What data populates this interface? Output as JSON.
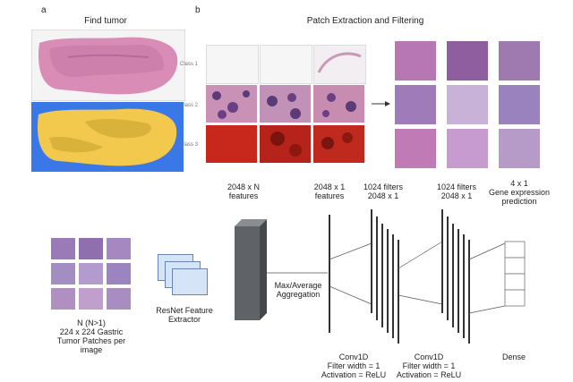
{
  "panel_a": {
    "letter": "a",
    "title": "Find tumor"
  },
  "panel_b": {
    "letter": "b",
    "title": "Patch Extraction and Filtering",
    "classes": [
      "Class 1",
      "Class 2",
      "Class 3"
    ]
  },
  "pipeline": {
    "input_label": [
      "N (N>1)",
      "224 x 224 Gastric",
      "Tumor Patches per",
      "image"
    ],
    "extractor_label": [
      "ResNet Feature",
      "Extractor"
    ],
    "features_n": [
      "2048 x N",
      "features"
    ],
    "aggregation": [
      "Max/Average",
      "Aggregation"
    ],
    "features_1": [
      "2048 x 1",
      "features"
    ],
    "conv1_filters": [
      "1024 filters",
      "2048 x 1"
    ],
    "conv2_filters": [
      "1024 filters",
      "2048 x 1"
    ],
    "output_label": [
      "4 x 1",
      "Gene expression",
      "prediction"
    ],
    "conv1_label": [
      "Conv1D",
      "Filter width = 1",
      "Activation = ReLU"
    ],
    "conv2_label": [
      "Conv1D",
      "Filter width = 1",
      "Activation = ReLU"
    ],
    "dense_label": "Dense"
  },
  "colors": {
    "tissue_pink": "#d98cb5",
    "tissue_purple": "#9a7bb7",
    "mask_yellow": "#f2c94c",
    "mask_blue": "#3b78e7",
    "class3_red": "#c8281c",
    "resnet_box": "#d6e4f7",
    "feature_block": "#5f6266"
  }
}
